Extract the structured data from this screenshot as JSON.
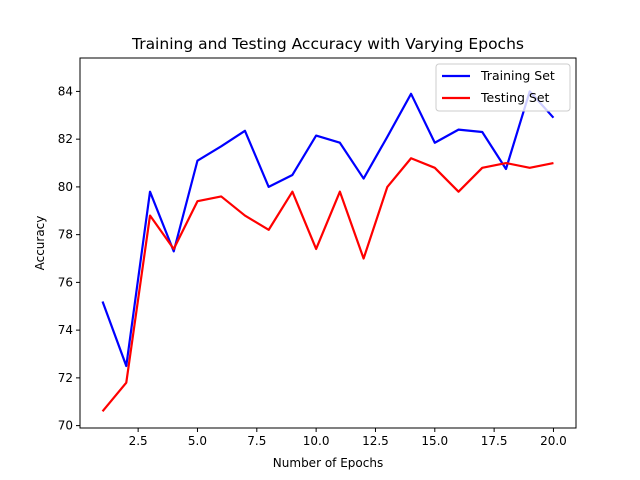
{
  "chart_data": {
    "type": "line",
    "title": "Training and Testing Accuracy with Varying Epochs",
    "xlabel": "Number of Epochs",
    "ylabel": "Accuracy",
    "xlim": [
      0.05,
      20.95
    ],
    "ylim": [
      69.9,
      85.4
    ],
    "xticks": [
      2.5,
      5.0,
      7.5,
      10.0,
      12.5,
      15.0,
      17.5,
      20.0
    ],
    "xtick_labels": [
      "2.5",
      "5.0",
      "7.5",
      "10.0",
      "12.5",
      "15.0",
      "17.5",
      "20.0"
    ],
    "yticks": [
      70,
      72,
      74,
      76,
      78,
      80,
      82,
      84
    ],
    "ytick_labels": [
      "70",
      "72",
      "74",
      "76",
      "78",
      "80",
      "82",
      "84"
    ],
    "grid": false,
    "legend_position": "top-right",
    "x": [
      1,
      2,
      3,
      4,
      5,
      6,
      7,
      8,
      9,
      10,
      11,
      12,
      13,
      14,
      15,
      16,
      17,
      18,
      19,
      20
    ],
    "series": [
      {
        "name": "Training Set",
        "color": "#0000ff",
        "values": [
          75.2,
          72.5,
          79.8,
          77.3,
          81.1,
          81.7,
          82.35,
          80.0,
          80.5,
          82.15,
          81.85,
          80.35,
          82.1,
          83.9,
          81.85,
          82.4,
          82.3,
          80.75,
          84.0,
          82.9
        ]
      },
      {
        "name": "Testing Set",
        "color": "#ff0000",
        "values": [
          70.6,
          71.8,
          78.8,
          77.4,
          79.4,
          79.6,
          78.8,
          78.2,
          79.8,
          77.4,
          79.8,
          77.0,
          80.0,
          81.2,
          80.8,
          79.8,
          80.8,
          81.0,
          80.8,
          81.0
        ]
      }
    ]
  }
}
